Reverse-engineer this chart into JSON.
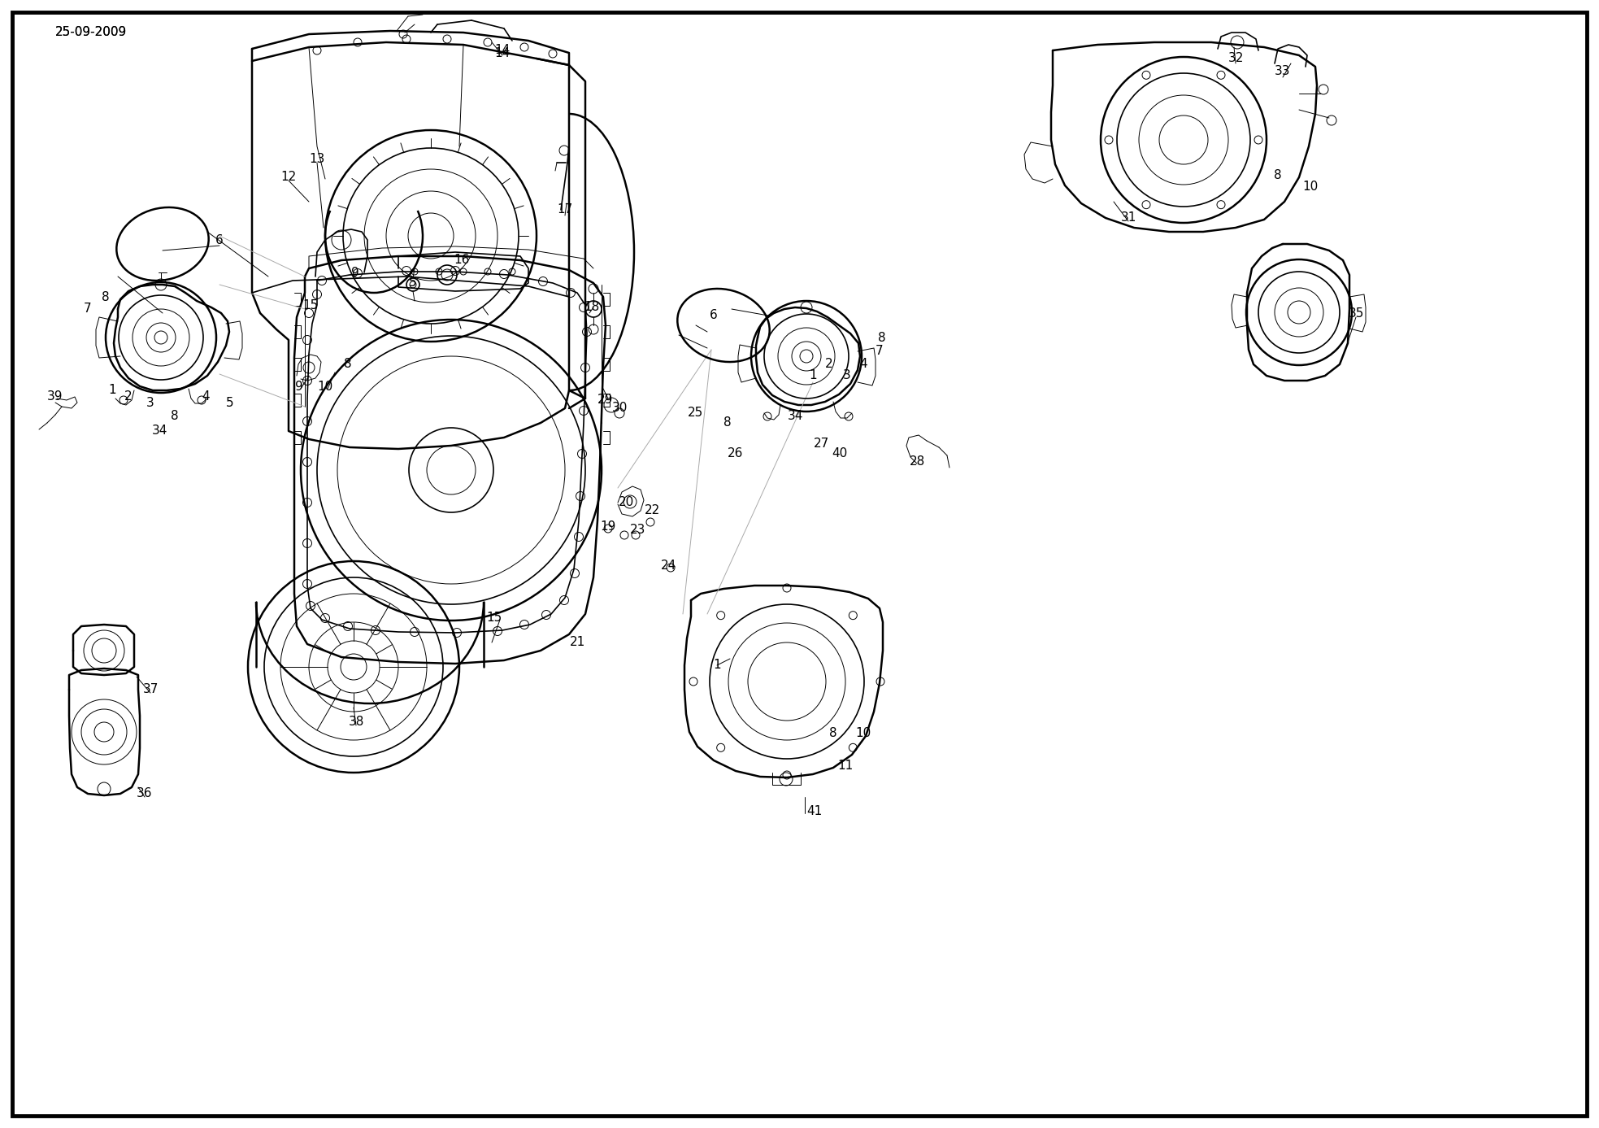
{
  "date_label": "25-09-2009",
  "background_color": "#ffffff",
  "line_color": "#000000",
  "fig_width": 19.67,
  "fig_height": 13.87,
  "dpi": 100,
  "border": [
    15,
    15,
    1937,
    1357
  ],
  "labels": [
    [
      "6",
      270,
      295
    ],
    [
      "12",
      355,
      218
    ],
    [
      "13",
      390,
      195
    ],
    [
      "9",
      368,
      475
    ],
    [
      "10",
      400,
      475
    ],
    [
      "8",
      428,
      448
    ],
    [
      "7",
      108,
      380
    ],
    [
      "8",
      130,
      365
    ],
    [
      "1",
      138,
      480
    ],
    [
      "2",
      158,
      487
    ],
    [
      "3",
      185,
      495
    ],
    [
      "4",
      253,
      488
    ],
    [
      "5",
      283,
      496
    ],
    [
      "8",
      215,
      512
    ],
    [
      "34",
      196,
      530
    ],
    [
      "39",
      68,
      488
    ],
    [
      "14",
      618,
      65
    ],
    [
      "16",
      568,
      320
    ],
    [
      "5",
      508,
      348
    ],
    [
      "17",
      695,
      258
    ],
    [
      "18",
      728,
      378
    ],
    [
      "9",
      437,
      335
    ],
    [
      "15",
      382,
      375
    ],
    [
      "15",
      608,
      760
    ],
    [
      "21",
      710,
      790
    ],
    [
      "20",
      770,
      618
    ],
    [
      "19",
      748,
      648
    ],
    [
      "23",
      785,
      652
    ],
    [
      "22",
      802,
      628
    ],
    [
      "24",
      822,
      695
    ],
    [
      "30",
      762,
      502
    ],
    [
      "29",
      745,
      492
    ],
    [
      "25",
      855,
      508
    ],
    [
      "6",
      878,
      388
    ],
    [
      "26",
      905,
      558
    ],
    [
      "8",
      895,
      520
    ],
    [
      "34",
      978,
      512
    ],
    [
      "40",
      1033,
      558
    ],
    [
      "27",
      1010,
      545
    ],
    [
      "1",
      1000,
      462
    ],
    [
      "2",
      1020,
      448
    ],
    [
      "3",
      1042,
      462
    ],
    [
      "4",
      1062,
      448
    ],
    [
      "7",
      1082,
      432
    ],
    [
      "8",
      1085,
      415
    ],
    [
      "28",
      1128,
      568
    ],
    [
      "1",
      882,
      818
    ],
    [
      "8",
      1025,
      902
    ],
    [
      "10",
      1062,
      902
    ],
    [
      "11",
      1040,
      942
    ],
    [
      "41",
      1002,
      998
    ],
    [
      "31",
      1388,
      268
    ],
    [
      "32",
      1520,
      72
    ],
    [
      "33",
      1578,
      88
    ],
    [
      "8",
      1572,
      215
    ],
    [
      "10",
      1612,
      230
    ],
    [
      "35",
      1668,
      385
    ],
    [
      "37",
      185,
      848
    ],
    [
      "36",
      178,
      975
    ],
    [
      "38",
      438,
      888
    ]
  ]
}
